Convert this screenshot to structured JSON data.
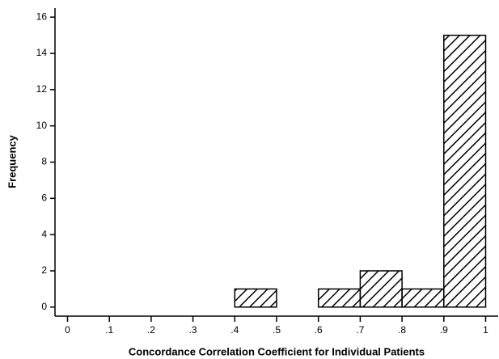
{
  "chart_data": {
    "type": "histogram",
    "x_label": "Concordance Correlation Coefficient for Individual Patients",
    "y_label": "Frequency",
    "bins": [
      0,
      0.1,
      0.2,
      0.3,
      0.4,
      0.5,
      0.6,
      0.7,
      0.8,
      0.9,
      1
    ],
    "values": [
      0,
      0,
      0,
      0,
      1,
      0,
      1,
      2,
      1,
      15
    ],
    "color": "#000000",
    "xlim": [
      -0.03,
      1.03
    ],
    "ylim": [
      -0.5,
      16.5
    ],
    "xticks": [
      0,
      {
        "value": 0.1,
        "label": ".1"
      },
      {
        "value": 0.2,
        "label": ".2"
      },
      {
        "value": 0.3,
        "label": ".3"
      },
      {
        "value": 0.4,
        "label": ".4"
      },
      {
        "value": 0.5,
        "label": ".5"
      },
      {
        "value": 0.6,
        "label": ".6"
      },
      {
        "value": 0.7,
        "label": ".7"
      },
      {
        "value": 0.8,
        "label": ".8"
      },
      {
        "value": 0.9,
        "label": ".9"
      },
      1
    ],
    "yticks": [
      0,
      2,
      4,
      6,
      8,
      10,
      12,
      14,
      16
    ]
  }
}
